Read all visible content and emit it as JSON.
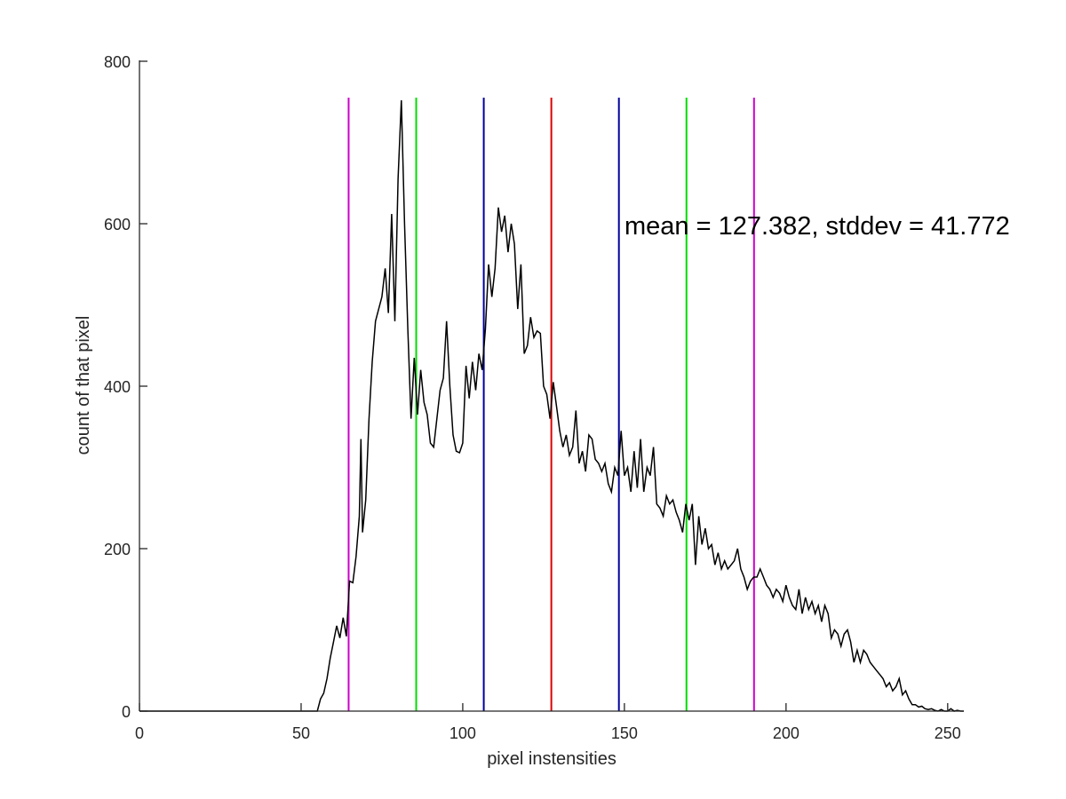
{
  "chart_data": {
    "type": "line",
    "title": "",
    "xlabel": "pixel instensities",
    "ylabel": "count of that pixel",
    "xlim": [
      0,
      255
    ],
    "ylim": [
      0,
      800
    ],
    "xticks": [
      0,
      50,
      100,
      150,
      200,
      250
    ],
    "yticks": [
      0,
      200,
      400,
      600,
      800
    ],
    "grid": false,
    "annotation": "mean = 127.382, stddev = 41.772",
    "series": [
      {
        "color": "#000000",
        "points": [
          [
            0,
            0
          ],
          [
            54,
            0
          ],
          [
            55,
            0
          ],
          [
            56,
            15
          ],
          [
            57,
            22
          ],
          [
            58,
            40
          ],
          [
            59,
            65
          ],
          [
            60,
            85
          ],
          [
            61,
            105
          ],
          [
            62,
            90
          ],
          [
            63,
            115
          ],
          [
            64,
            92
          ],
          [
            65,
            160
          ],
          [
            66,
            158
          ],
          [
            67,
            190
          ],
          [
            68,
            240
          ],
          [
            68.5,
            335
          ],
          [
            69,
            220
          ],
          [
            70,
            260
          ],
          [
            71,
            360
          ],
          [
            72,
            430
          ],
          [
            73,
            480
          ],
          [
            74,
            495
          ],
          [
            75,
            510
          ],
          [
            76,
            545
          ],
          [
            77,
            490
          ],
          [
            78,
            612
          ],
          [
            79,
            480
          ],
          [
            80,
            655
          ],
          [
            81,
            752
          ],
          [
            82,
            600
          ],
          [
            83,
            470
          ],
          [
            84,
            360
          ],
          [
            85,
            435
          ],
          [
            86,
            365
          ],
          [
            87,
            420
          ],
          [
            88,
            380
          ],
          [
            89,
            365
          ],
          [
            90,
            330
          ],
          [
            91,
            325
          ],
          [
            92,
            360
          ],
          [
            93,
            395
          ],
          [
            94,
            410
          ],
          [
            95,
            480
          ],
          [
            96,
            400
          ],
          [
            97,
            340
          ],
          [
            98,
            320
          ],
          [
            99,
            318
          ],
          [
            100,
            330
          ],
          [
            101,
            425
          ],
          [
            102,
            385
          ],
          [
            103,
            430
          ],
          [
            104,
            395
          ],
          [
            105,
            440
          ],
          [
            106,
            420
          ],
          [
            107,
            470
          ],
          [
            108,
            550
          ],
          [
            109,
            510
          ],
          [
            110,
            545
          ],
          [
            111,
            620
          ],
          [
            112,
            590
          ],
          [
            113,
            610
          ],
          [
            114,
            565
          ],
          [
            115,
            600
          ],
          [
            116,
            575
          ],
          [
            117,
            495
          ],
          [
            118,
            550
          ],
          [
            119,
            440
          ],
          [
            120,
            450
          ],
          [
            121,
            485
          ],
          [
            122,
            460
          ],
          [
            123,
            468
          ],
          [
            124,
            465
          ],
          [
            125,
            400
          ],
          [
            126,
            390
          ],
          [
            127,
            360
          ],
          [
            128,
            405
          ],
          [
            129,
            375
          ],
          [
            130,
            345
          ],
          [
            131,
            325
          ],
          [
            132,
            340
          ],
          [
            133,
            315
          ],
          [
            134,
            325
          ],
          [
            135,
            370
          ],
          [
            136,
            305
          ],
          [
            137,
            320
          ],
          [
            138,
            295
          ],
          [
            139,
            340
          ],
          [
            140,
            335
          ],
          [
            141,
            310
          ],
          [
            142,
            305
          ],
          [
            143,
            295
          ],
          [
            144,
            305
          ],
          [
            145,
            280
          ],
          [
            146,
            270
          ],
          [
            147,
            300
          ],
          [
            148,
            290
          ],
          [
            149,
            345
          ],
          [
            150,
            290
          ],
          [
            151,
            300
          ],
          [
            152,
            270
          ],
          [
            153,
            320
          ],
          [
            154,
            275
          ],
          [
            155,
            335
          ],
          [
            156,
            270
          ],
          [
            157,
            300
          ],
          [
            158,
            290
          ],
          [
            159,
            325
          ],
          [
            160,
            255
          ],
          [
            161,
            250
          ],
          [
            162,
            240
          ],
          [
            163,
            265
          ],
          [
            164,
            255
          ],
          [
            165,
            260
          ],
          [
            166,
            245
          ],
          [
            167,
            235
          ],
          [
            168,
            220
          ],
          [
            169,
            255
          ],
          [
            170,
            235
          ],
          [
            171,
            255
          ],
          [
            172,
            180
          ],
          [
            173,
            240
          ],
          [
            174,
            205
          ],
          [
            175,
            225
          ],
          [
            176,
            200
          ],
          [
            177,
            205
          ],
          [
            178,
            180
          ],
          [
            179,
            195
          ],
          [
            180,
            175
          ],
          [
            181,
            185
          ],
          [
            182,
            175
          ],
          [
            183,
            180
          ],
          [
            184,
            185
          ],
          [
            185,
            200
          ],
          [
            186,
            175
          ],
          [
            187,
            165
          ],
          [
            188,
            150
          ],
          [
            189,
            160
          ],
          [
            190,
            165
          ],
          [
            191,
            165
          ],
          [
            192,
            175
          ],
          [
            193,
            165
          ],
          [
            194,
            155
          ],
          [
            195,
            150
          ],
          [
            196,
            140
          ],
          [
            197,
            150
          ],
          [
            198,
            145
          ],
          [
            199,
            135
          ],
          [
            200,
            155
          ],
          [
            201,
            140
          ],
          [
            202,
            130
          ],
          [
            203,
            125
          ],
          [
            204,
            150
          ],
          [
            205,
            120
          ],
          [
            206,
            140
          ],
          [
            207,
            125
          ],
          [
            208,
            135
          ],
          [
            209,
            120
          ],
          [
            210,
            130
          ],
          [
            211,
            110
          ],
          [
            212,
            130
          ],
          [
            213,
            120
          ],
          [
            214,
            90
          ],
          [
            215,
            100
          ],
          [
            216,
            95
          ],
          [
            217,
            80
          ],
          [
            218,
            95
          ],
          [
            219,
            100
          ],
          [
            220,
            85
          ],
          [
            221,
            60
          ],
          [
            222,
            75
          ],
          [
            223,
            60
          ],
          [
            224,
            75
          ],
          [
            225,
            70
          ],
          [
            226,
            60
          ],
          [
            227,
            55
          ],
          [
            228,
            50
          ],
          [
            229,
            45
          ],
          [
            230,
            40
          ],
          [
            231,
            30
          ],
          [
            232,
            35
          ],
          [
            233,
            25
          ],
          [
            234,
            30
          ],
          [
            235,
            40
          ],
          [
            236,
            20
          ],
          [
            237,
            25
          ],
          [
            238,
            15
          ],
          [
            239,
            8
          ],
          [
            240,
            8
          ],
          [
            241,
            5
          ],
          [
            242,
            6
          ],
          [
            243,
            3
          ],
          [
            244,
            2
          ],
          [
            245,
            3
          ],
          [
            246,
            1
          ],
          [
            247,
            0
          ],
          [
            248,
            2
          ],
          [
            249,
            0
          ],
          [
            250,
            0
          ],
          [
            251,
            3
          ],
          [
            252,
            0
          ],
          [
            253,
            1
          ],
          [
            254,
            0
          ],
          [
            255,
            0
          ]
        ]
      }
    ],
    "vlines": [
      {
        "x": 64.7,
        "color": "#cc00cc"
      },
      {
        "x": 85.6,
        "color": "#00dd00"
      },
      {
        "x": 106.5,
        "color": "#000099"
      },
      {
        "x": 127.4,
        "color": "#dd0000"
      },
      {
        "x": 148.3,
        "color": "#000099"
      },
      {
        "x": 169.2,
        "color": "#00dd00"
      },
      {
        "x": 190.1,
        "color": "#cc00cc"
      }
    ]
  }
}
